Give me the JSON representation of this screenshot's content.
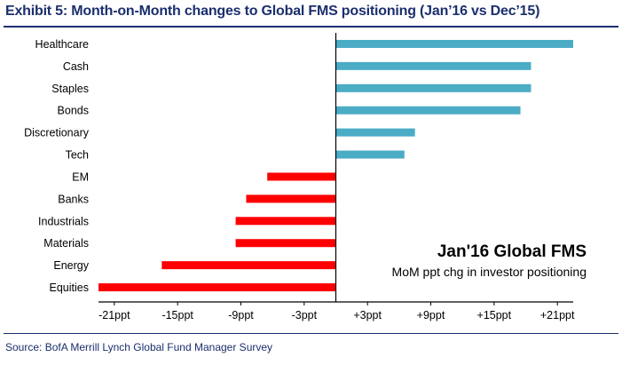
{
  "title": "Exhibit 5: Month-on-Month changes to Global FMS positioning (Jan’16 vs Dec’15)",
  "source": "Source: BofA Merrill Lynch Global Fund Manager Survey",
  "colors": {
    "positive": "#4bacc6",
    "negative": "#ff0000",
    "title": "#1b2f6e",
    "axis": "#000000"
  },
  "chart_data": {
    "type": "bar",
    "orientation": "horizontal",
    "categories": [
      "Healthcare",
      "Cash",
      "Staples",
      "Bonds",
      "Discretionary",
      "Tech",
      "EM",
      "Banks",
      "Industrials",
      "Materials",
      "Energy",
      "Equities"
    ],
    "values": [
      22.5,
      18.5,
      18.5,
      17.5,
      7.5,
      6.5,
      -6.5,
      -8.5,
      -9.5,
      -9.5,
      -16.5,
      -22.5
    ],
    "xlim": [
      -22.5,
      22.5
    ],
    "xticks": [
      -21,
      -15,
      -9,
      -3,
      3,
      9,
      15,
      21
    ],
    "xtick_labels": [
      "-21ppt",
      "-15ppt",
      "-9ppt",
      "-3ppt",
      "+3ppt",
      "+9ppt",
      "+15ppt",
      "+21ppt"
    ],
    "annotation": {
      "title": "Jan'16 Global FMS",
      "subtitle": "MoM ppt chg in investor positioning"
    },
    "xlabel": "",
    "ylabel": "",
    "grid": false
  }
}
